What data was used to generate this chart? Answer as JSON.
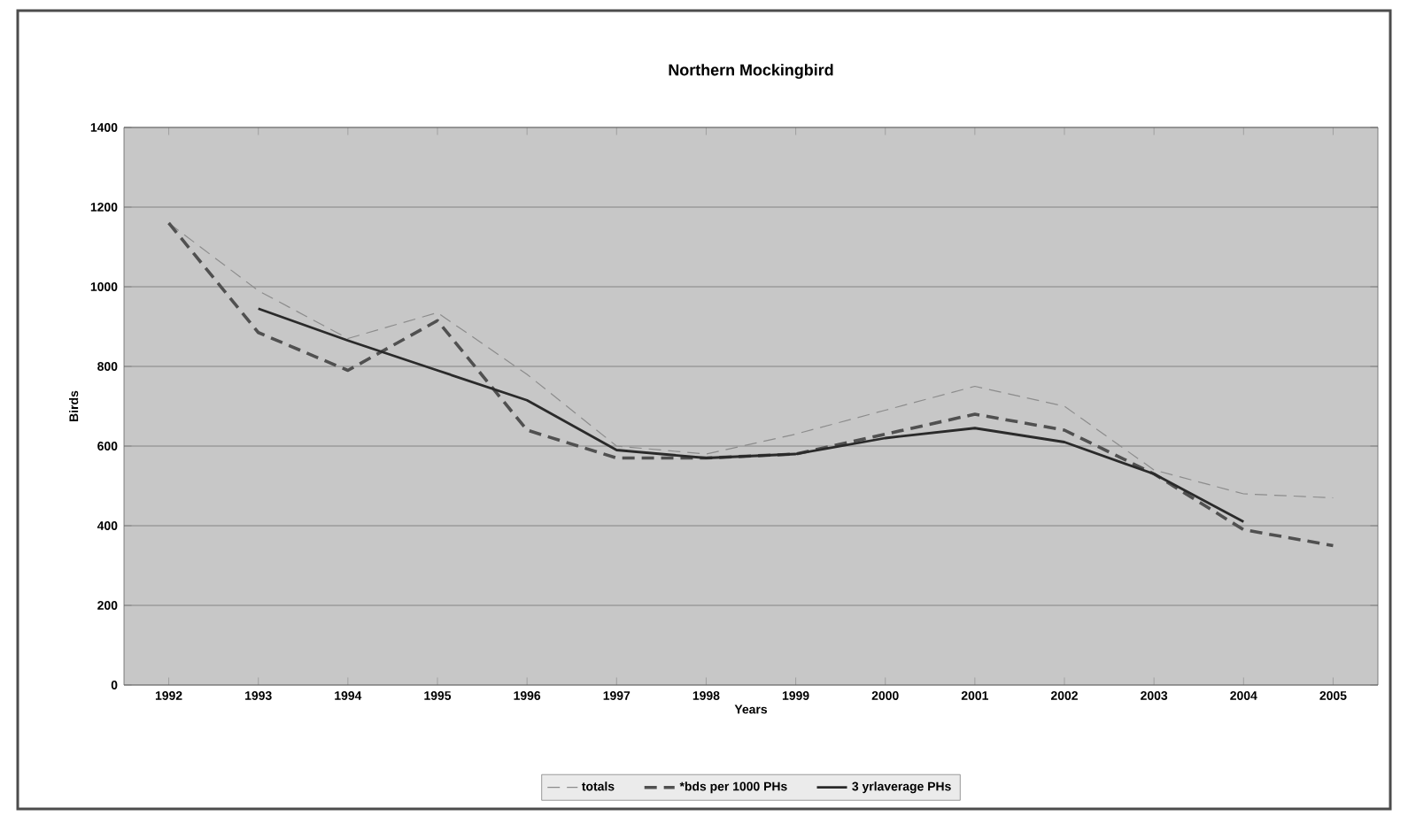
{
  "chart_data": {
    "type": "line",
    "title": "Northern Mockingbird",
    "xlabel": "Years",
    "ylabel": "Birds",
    "categories": [
      "1992",
      "1993",
      "1994",
      "1995",
      "1996",
      "1997",
      "1998",
      "1999",
      "2000",
      "2001",
      "2002",
      "2003",
      "2004",
      "2005"
    ],
    "series": [
      {
        "name": "totals",
        "color": "#8c8c8c",
        "line_style": "dashed",
        "values": [
          1160,
          990,
          870,
          935,
          780,
          600,
          580,
          630,
          690,
          750,
          700,
          540,
          480,
          470
        ]
      },
      {
        "name": "*bds per 1000 PHs",
        "color": "#505050",
        "line_style": "dashed",
        "values": [
          1160,
          885,
          790,
          915,
          640,
          570,
          570,
          580,
          630,
          680,
          640,
          530,
          390,
          350
        ]
      },
      {
        "name": "3 yrlaverage PHs",
        "color": "#2a2a2a",
        "line_style": "solid",
        "values": [
          null,
          945,
          865,
          790,
          715,
          590,
          570,
          580,
          620,
          645,
          610,
          530,
          410,
          null
        ]
      }
    ],
    "ylim": [
      0,
      1400
    ],
    "yticks": [
      0,
      200,
      400,
      600,
      800,
      1000,
      1200,
      1400
    ],
    "grid": "y",
    "legend": "bottom",
    "marker": "none"
  }
}
